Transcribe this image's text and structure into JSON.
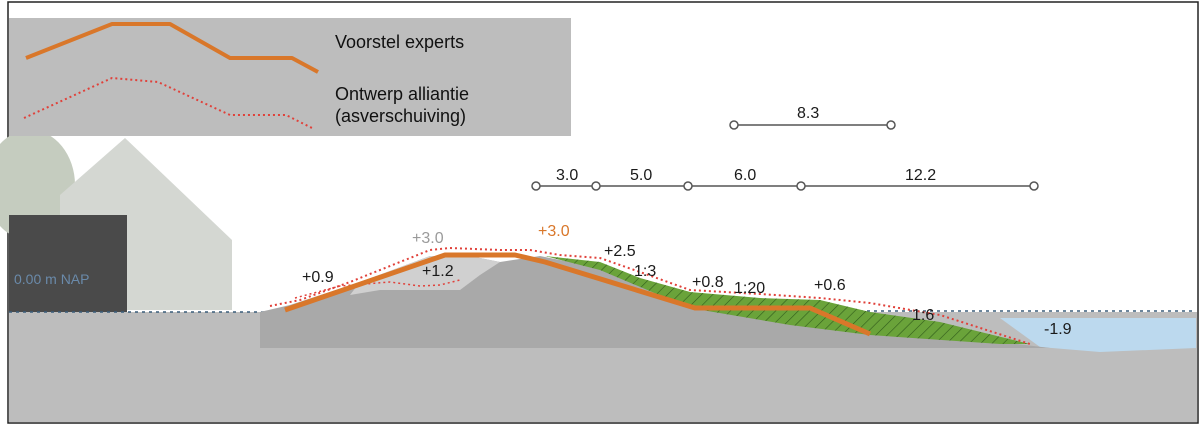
{
  "legend": {
    "items": [
      {
        "label": "Voorstel experts",
        "style": "solid",
        "color": "#d9772a"
      },
      {
        "label": "Ontwerp alliantie",
        "label2": "(asverschuiving)",
        "style": "dotted",
        "color": "#e0413a"
      }
    ]
  },
  "house_label": "0.00 m NAP",
  "dimensions": {
    "top_row": [
      "8.3"
    ],
    "bottom_row": [
      "3.0",
      "5.0",
      "6.0",
      "12.2"
    ]
  },
  "elevations": {
    "crest_grey": "+3.0",
    "crest_orange": "+3.0",
    "left_toe": "+0.9",
    "left_slope": "+1.2",
    "upper_berm": "+2.5",
    "slope_1": "1:3",
    "mid_berm": "+0.8",
    "slope_2": "1:20",
    "lower_berm": "+0.6",
    "slope_3": "1:6",
    "water": "-1.9"
  },
  "colors": {
    "expert_line": "#d9772a",
    "alliance_line": "#e0413a",
    "ground": "#bdbdbd",
    "dike": "#a9a9a9",
    "vegetation": "#6aa33a",
    "water": "#bcd9ee",
    "building": "#4a4a4a"
  }
}
